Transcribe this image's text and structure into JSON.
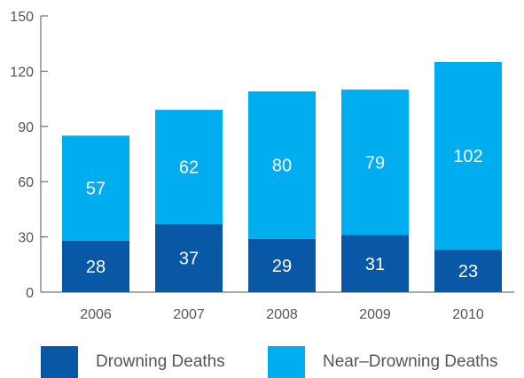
{
  "colors": {
    "drowning": "#0858a5",
    "near_drowning": "#00aeef",
    "axis": "#555555",
    "text": "#555555"
  },
  "chart_data": {
    "type": "bar",
    "stacked": true,
    "categories": [
      "2006",
      "2007",
      "2008",
      "2009",
      "2010"
    ],
    "series": [
      {
        "name": "Drowning Deaths",
        "values": [
          28,
          37,
          29,
          31,
          23
        ]
      },
      {
        "name": "Near–Drowning Deaths",
        "values": [
          57,
          62,
          80,
          79,
          102
        ]
      }
    ],
    "title": "",
    "xlabel": "",
    "ylabel": "",
    "ylim": [
      0,
      150
    ],
    "yticks": [
      0,
      30,
      60,
      90,
      120,
      150
    ],
    "grid": false,
    "legend_position": "bottom"
  }
}
